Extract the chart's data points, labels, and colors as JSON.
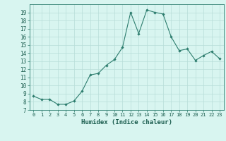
{
  "x": [
    0,
    1,
    2,
    3,
    4,
    5,
    6,
    7,
    8,
    9,
    10,
    11,
    12,
    13,
    14,
    15,
    16,
    17,
    18,
    19,
    20,
    21,
    22,
    23
  ],
  "y": [
    8.7,
    8.3,
    8.3,
    7.7,
    7.7,
    8.1,
    9.3,
    11.3,
    11.5,
    12.5,
    13.2,
    14.7,
    19.0,
    16.4,
    19.3,
    19.0,
    18.8,
    16.0,
    14.3,
    14.5,
    13.1,
    13.7,
    14.2,
    13.3
  ],
  "line_color": "#2d7d6e",
  "marker": "D",
  "marker_size": 2.2,
  "bg_color": "#d8f5f0",
  "grid_color": "#b8ddd8",
  "xlabel": "Humidex (Indice chaleur)",
  "xlim": [
    -0.5,
    23.5
  ],
  "ylim": [
    7,
    20
  ],
  "yticks": [
    7,
    8,
    9,
    10,
    11,
    12,
    13,
    14,
    15,
    16,
    17,
    18,
    19
  ],
  "xticks": [
    0,
    1,
    2,
    3,
    4,
    5,
    6,
    7,
    8,
    9,
    10,
    11,
    12,
    13,
    14,
    15,
    16,
    17,
    18,
    19,
    20,
    21,
    22,
    23
  ],
  "tick_color": "#2d7d6e",
  "label_color": "#1a5c4e"
}
